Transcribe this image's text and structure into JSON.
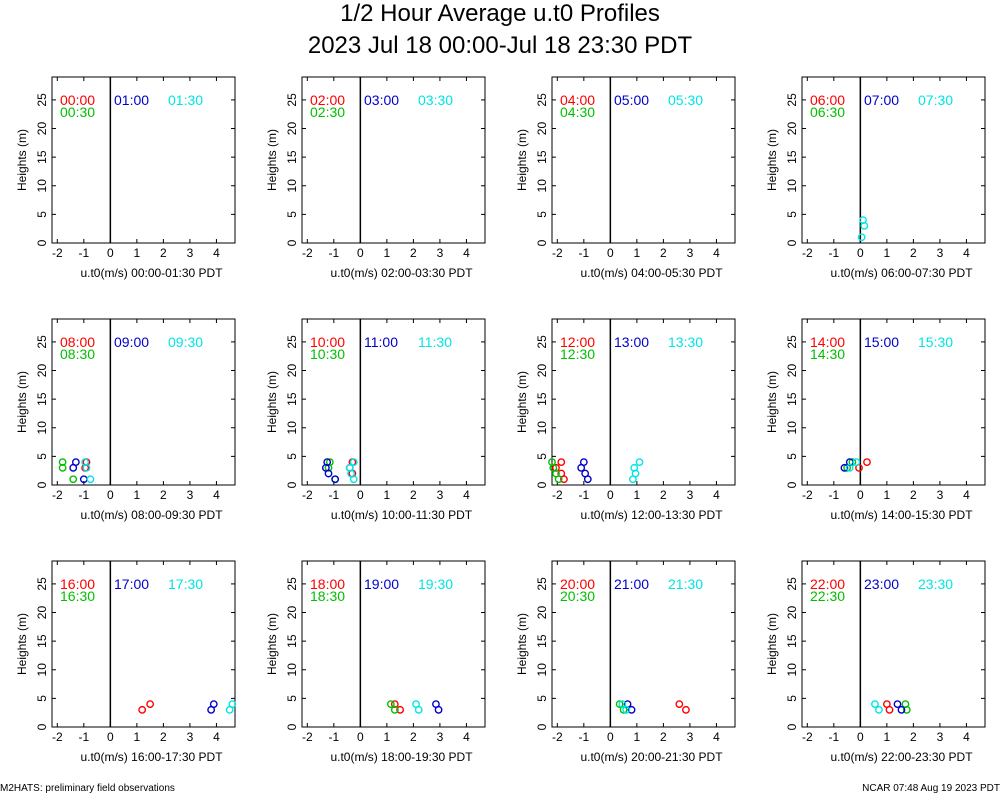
{
  "title": "1/2 Hour Average u.t0 Profiles",
  "subtitle": "2023 Jul 18 00:00-Jul 18 23:30 PDT",
  "footer_left": "M2HATS: preliminary field observations",
  "footer_right": "NCAR 07:48 Aug 19 2023 PDT",
  "colors": {
    "red": "#ff0000",
    "green": "#00c000",
    "blue": "#0000cc",
    "cyan": "#00e5e5"
  },
  "chart_data": [
    {
      "type": "scatter",
      "ylabel": "Heights (m)",
      "xlabel": "u.t0(m/s) 00:00-01:30 PDT",
      "xlim": [
        -2.2,
        4.7
      ],
      "ylim": [
        0,
        29
      ],
      "xticks": [
        "-2",
        "-1",
        "0",
        "1",
        "2",
        "3",
        "4"
      ],
      "yticks": [
        "0",
        "5",
        "10",
        "15",
        "20",
        "25"
      ],
      "series": [
        {
          "name": "00:00",
          "color": "red",
          "points": []
        },
        {
          "name": "00:30",
          "color": "green",
          "points": []
        },
        {
          "name": "01:00",
          "color": "blue",
          "points": []
        },
        {
          "name": "01:30",
          "color": "cyan",
          "points": []
        }
      ]
    },
    {
      "type": "scatter",
      "ylabel": "Heights (m)",
      "xlabel": "u.t0(m/s) 02:00-03:30 PDT",
      "xlim": [
        -2.2,
        4.7
      ],
      "ylim": [
        0,
        29
      ],
      "xticks": [
        "-2",
        "-1",
        "0",
        "1",
        "2",
        "3",
        "4"
      ],
      "yticks": [
        "0",
        "5",
        "10",
        "15",
        "20",
        "25"
      ],
      "series": [
        {
          "name": "02:00",
          "color": "red",
          "points": []
        },
        {
          "name": "02:30",
          "color": "green",
          "points": []
        },
        {
          "name": "03:00",
          "color": "blue",
          "points": []
        },
        {
          "name": "03:30",
          "color": "cyan",
          "points": []
        }
      ]
    },
    {
      "type": "scatter",
      "ylabel": "Heights (m)",
      "xlabel": "u.t0(m/s) 04:00-05:30 PDT",
      "xlim": [
        -2.2,
        4.7
      ],
      "ylim": [
        0,
        29
      ],
      "xticks": [
        "-2",
        "-1",
        "0",
        "1",
        "2",
        "3",
        "4"
      ],
      "yticks": [
        "0",
        "5",
        "10",
        "15",
        "20",
        "25"
      ],
      "series": [
        {
          "name": "04:00",
          "color": "red",
          "points": []
        },
        {
          "name": "04:30",
          "color": "green",
          "points": []
        },
        {
          "name": "05:00",
          "color": "blue",
          "points": []
        },
        {
          "name": "05:30",
          "color": "cyan",
          "points": []
        }
      ]
    },
    {
      "type": "scatter",
      "ylabel": "Heights (m)",
      "xlabel": "u.t0(m/s) 06:00-07:30 PDT",
      "xlim": [
        -2.2,
        4.7
      ],
      "ylim": [
        0,
        29
      ],
      "xticks": [
        "-2",
        "-1",
        "0",
        "1",
        "2",
        "3",
        "4"
      ],
      "yticks": [
        "0",
        "5",
        "10",
        "15",
        "20",
        "25"
      ],
      "series": [
        {
          "name": "06:00",
          "color": "red",
          "points": []
        },
        {
          "name": "06:30",
          "color": "green",
          "points": []
        },
        {
          "name": "07:00",
          "color": "blue",
          "points": []
        },
        {
          "name": "07:30",
          "color": "cyan",
          "points": [
            [
              0.1,
              4
            ],
            [
              0.15,
              3
            ],
            [
              0.05,
              1
            ]
          ]
        }
      ]
    },
    {
      "type": "scatter",
      "ylabel": "Heights (m)",
      "xlabel": "u.t0(m/s) 08:00-09:30 PDT",
      "xlim": [
        -2.2,
        4.7
      ],
      "ylim": [
        0,
        29
      ],
      "xticks": [
        "-2",
        "-1",
        "0",
        "1",
        "2",
        "3",
        "4"
      ],
      "yticks": [
        "0",
        "5",
        "10",
        "15",
        "20",
        "25"
      ],
      "series": [
        {
          "name": "08:00",
          "color": "red",
          "points": [
            [
              -0.9,
              4
            ],
            [
              -0.95,
              3
            ]
          ]
        },
        {
          "name": "08:30",
          "color": "green",
          "points": [
            [
              -1.8,
              4
            ],
            [
              -1.8,
              3
            ],
            [
              -1.4,
              1
            ]
          ]
        },
        {
          "name": "09:00",
          "color": "blue",
          "points": [
            [
              -1.3,
              4
            ],
            [
              -1.4,
              3
            ],
            [
              -1.0,
              1
            ]
          ]
        },
        {
          "name": "09:30",
          "color": "cyan",
          "points": [
            [
              -0.95,
              4
            ],
            [
              -0.9,
              3
            ],
            [
              -0.75,
              1
            ]
          ]
        }
      ]
    },
    {
      "type": "scatter",
      "ylabel": "Heights (m)",
      "xlabel": "u.t0(m/s) 10:00-11:30 PDT",
      "xlim": [
        -2.2,
        4.7
      ],
      "ylim": [
        0,
        29
      ],
      "xticks": [
        "-2",
        "-1",
        "0",
        "1",
        "2",
        "3",
        "4"
      ],
      "yticks": [
        "0",
        "5",
        "10",
        "15",
        "20",
        "25"
      ],
      "series": [
        {
          "name": "10:00",
          "color": "red",
          "points": [
            [
              -0.3,
              4
            ],
            [
              -0.4,
              3
            ],
            [
              -0.3,
              2
            ]
          ]
        },
        {
          "name": "10:30",
          "color": "green",
          "points": [
            [
              -1.15,
              4
            ],
            [
              -1.2,
              3
            ],
            [
              -0.95,
              1
            ]
          ]
        },
        {
          "name": "11:00",
          "color": "blue",
          "points": [
            [
              -1.25,
              4
            ],
            [
              -1.3,
              3
            ],
            [
              -1.2,
              2
            ],
            [
              -0.95,
              1
            ]
          ]
        },
        {
          "name": "11:30",
          "color": "cyan",
          "points": [
            [
              -0.25,
              4
            ],
            [
              -0.4,
              3
            ],
            [
              -0.35,
              2
            ],
            [
              -0.25,
              1
            ]
          ]
        }
      ]
    },
    {
      "type": "scatter",
      "ylabel": "Heights (m)",
      "xlabel": "u.t0(m/s) 12:00-13:30 PDT",
      "xlim": [
        -2.2,
        4.7
      ],
      "ylim": [
        0,
        29
      ],
      "xticks": [
        "-2",
        "-1",
        "0",
        "1",
        "2",
        "3",
        "4"
      ],
      "yticks": [
        "0",
        "5",
        "10",
        "15",
        "20",
        "25"
      ],
      "series": [
        {
          "name": "12:00",
          "color": "red",
          "points": [
            [
              -1.85,
              4
            ],
            [
              -2.05,
              3
            ],
            [
              -1.85,
              2
            ],
            [
              -1.75,
              1
            ]
          ]
        },
        {
          "name": "12:30",
          "color": "green",
          "points": [
            [
              -2.2,
              4
            ],
            [
              -2.15,
              3
            ],
            [
              -2.05,
              2
            ],
            [
              -1.95,
              1
            ]
          ]
        },
        {
          "name": "13:00",
          "color": "blue",
          "points": [
            [
              -1.0,
              4
            ],
            [
              -1.1,
              3
            ],
            [
              -0.95,
              2
            ],
            [
              -0.85,
              1
            ]
          ]
        },
        {
          "name": "13:30",
          "color": "cyan",
          "points": [
            [
              1.1,
              4
            ],
            [
              0.9,
              3
            ],
            [
              0.95,
              2
            ],
            [
              0.85,
              1
            ]
          ]
        }
      ]
    },
    {
      "type": "scatter",
      "ylabel": "Heights (m)",
      "xlabel": "u.t0(m/s) 14:00-15:30 PDT",
      "xlim": [
        -2.2,
        4.7
      ],
      "ylim": [
        0,
        29
      ],
      "xticks": [
        "-2",
        "-1",
        "0",
        "1",
        "2",
        "3",
        "4"
      ],
      "yticks": [
        "0",
        "5",
        "10",
        "15",
        "20",
        "25"
      ],
      "series": [
        {
          "name": "14:00",
          "color": "red",
          "points": [
            [
              0.25,
              4
            ],
            [
              -0.05,
              3
            ]
          ]
        },
        {
          "name": "14:30",
          "color": "green",
          "points": [
            [
              -0.3,
              4
            ],
            [
              -0.5,
              3
            ]
          ]
        },
        {
          "name": "15:00",
          "color": "blue",
          "points": [
            [
              -0.4,
              4
            ],
            [
              -0.6,
              3
            ]
          ]
        },
        {
          "name": "15:30",
          "color": "cyan",
          "points": [
            [
              -0.15,
              4
            ],
            [
              -0.4,
              3
            ]
          ]
        }
      ]
    },
    {
      "type": "scatter",
      "ylabel": "Heights (m)",
      "xlabel": "u.t0(m/s) 16:00-17:30 PDT",
      "xlim": [
        -2.2,
        4.7
      ],
      "ylim": [
        0,
        29
      ],
      "xticks": [
        "-2",
        "-1",
        "0",
        "1",
        "2",
        "3",
        "4"
      ],
      "yticks": [
        "0",
        "5",
        "10",
        "15",
        "20",
        "25"
      ],
      "series": [
        {
          "name": "16:00",
          "color": "red",
          "points": [
            [
              1.5,
              4
            ],
            [
              1.2,
              3
            ]
          ]
        },
        {
          "name": "16:30",
          "color": "green",
          "points": []
        },
        {
          "name": "17:00",
          "color": "blue",
          "points": [
            [
              3.9,
              4
            ],
            [
              3.8,
              3
            ]
          ]
        },
        {
          "name": "17:30",
          "color": "cyan",
          "points": [
            [
              4.6,
              4
            ],
            [
              4.5,
              3
            ]
          ]
        }
      ]
    },
    {
      "type": "scatter",
      "ylabel": "Heights (m)",
      "xlabel": "u.t0(m/s) 18:00-19:30 PDT",
      "xlim": [
        -2.2,
        4.7
      ],
      "ylim": [
        0,
        29
      ],
      "xticks": [
        "-2",
        "-1",
        "0",
        "1",
        "2",
        "3",
        "4"
      ],
      "yticks": [
        "0",
        "5",
        "10",
        "15",
        "20",
        "25"
      ],
      "series": [
        {
          "name": "18:00",
          "color": "red",
          "points": [
            [
              1.3,
              4
            ],
            [
              1.5,
              3
            ]
          ]
        },
        {
          "name": "18:30",
          "color": "green",
          "points": [
            [
              1.15,
              4
            ],
            [
              1.3,
              3
            ]
          ]
        },
        {
          "name": "19:00",
          "color": "blue",
          "points": [
            [
              2.85,
              4
            ],
            [
              2.95,
              3
            ]
          ]
        },
        {
          "name": "19:30",
          "color": "cyan",
          "points": [
            [
              2.1,
              4
            ],
            [
              2.2,
              3
            ]
          ]
        }
      ]
    },
    {
      "type": "scatter",
      "ylabel": "Heights (m)",
      "xlabel": "u.t0(m/s) 20:00-21:30 PDT",
      "xlim": [
        -2.2,
        4.7
      ],
      "ylim": [
        0,
        29
      ],
      "xticks": [
        "-2",
        "-1",
        "0",
        "1",
        "2",
        "3",
        "4"
      ],
      "yticks": [
        "0",
        "5",
        "10",
        "15",
        "20",
        "25"
      ],
      "series": [
        {
          "name": "20:00",
          "color": "red",
          "points": [
            [
              2.6,
              4
            ],
            [
              2.85,
              3
            ]
          ]
        },
        {
          "name": "20:30",
          "color": "green",
          "points": [
            [
              0.35,
              4
            ],
            [
              0.5,
              3
            ]
          ]
        },
        {
          "name": "21:00",
          "color": "blue",
          "points": [
            [
              0.65,
              4
            ],
            [
              0.8,
              3
            ]
          ]
        },
        {
          "name": "21:30",
          "color": "cyan",
          "points": [
            [
              0.45,
              4
            ],
            [
              0.6,
              3
            ]
          ]
        }
      ]
    },
    {
      "type": "scatter",
      "ylabel": "Heights (m)",
      "xlabel": "u.t0(m/s) 22:00-23:30 PDT",
      "xlim": [
        -2.2,
        4.7
      ],
      "ylim": [
        0,
        29
      ],
      "xticks": [
        "-2",
        "-1",
        "0",
        "1",
        "2",
        "3",
        "4"
      ],
      "yticks": [
        "0",
        "5",
        "10",
        "15",
        "20",
        "25"
      ],
      "series": [
        {
          "name": "22:00",
          "color": "red",
          "points": [
            [
              1.0,
              4
            ],
            [
              1.1,
              3
            ]
          ]
        },
        {
          "name": "22:30",
          "color": "green",
          "points": [
            [
              1.7,
              4
            ],
            [
              1.75,
              3
            ]
          ]
        },
        {
          "name": "23:00",
          "color": "blue",
          "points": [
            [
              1.4,
              4
            ],
            [
              1.55,
              3
            ]
          ]
        },
        {
          "name": "23:30",
          "color": "cyan",
          "points": [
            [
              0.55,
              4
            ],
            [
              0.7,
              3
            ]
          ]
        }
      ]
    }
  ]
}
